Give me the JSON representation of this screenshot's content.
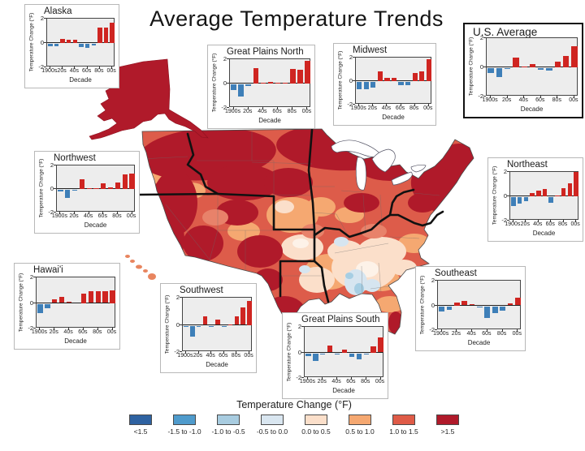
{
  "title": "Average Temperature Trends",
  "axes": {
    "ylabel": "Temperature Change (°F)",
    "xlabel": "Decade",
    "yticks": [
      "2",
      "0",
      "-2"
    ],
    "xticks": [
      "1900s",
      "20s",
      "40s",
      "60s",
      "80s",
      "00s"
    ],
    "ylim": [
      -2,
      2
    ]
  },
  "colors": {
    "bar_positive": "#cf2521",
    "bar_negative": "#3e7fb8",
    "plot_bg": "#ededed",
    "map_dark_red": "#b01a2a",
    "map_red": "#dd5c4a",
    "map_orange": "#f5a871",
    "map_peach": "#fbdfca",
    "map_pale_blue": "#d6e5f0",
    "map_light_blue": "#a6cee3"
  },
  "legend": {
    "title": "Temperature Change (°F)",
    "items": [
      {
        "label": "<1.5",
        "color": "#2e62a1"
      },
      {
        "label": "-1.5 to -1.0",
        "color": "#4f9bcc"
      },
      {
        "label": "-1.0 to -0.5",
        "color": "#a8cce0"
      },
      {
        "label": "-0.5 to 0.0",
        "color": "#d9e6f0"
      },
      {
        "label": "0.0 to 0.5",
        "color": "#fbdfca"
      },
      {
        "label": "0.5 to 1.0",
        "color": "#f5a871"
      },
      {
        "label": "1.0 to 1.5",
        "color": "#df5b47"
      },
      {
        "label": ">1.5",
        "color": "#b01a2a"
      }
    ]
  },
  "chart_data": {
    "type": "bar",
    "title": "Average Temperature Trends",
    "xlabel": "Decade",
    "ylabel": "Temperature Change (°F)",
    "ylim": [
      -2,
      2
    ],
    "grid": false,
    "categories": [
      "1900s",
      "1910s",
      "1920s",
      "1930s",
      "1940s",
      "1950s",
      "1960s",
      "1970s",
      "1980s",
      "1990s",
      "2000s"
    ],
    "series": [
      {
        "name": "Alaska",
        "values": [
          -0.2,
          -0.2,
          0.35,
          0.3,
          0.25,
          -0.25,
          -0.35,
          -0.15,
          1.3,
          1.3,
          1.7
        ]
      },
      {
        "name": "Northwest",
        "values": [
          -0.15,
          -0.7,
          -0.1,
          0.8,
          0.05,
          0.1,
          0.5,
          0.15,
          0.55,
          1.25,
          1.3
        ]
      },
      {
        "name": "Great Plains North",
        "values": [
          -0.45,
          -1.0,
          -0.1,
          1.3,
          0.05,
          0.15,
          0.1,
          0.1,
          1.2,
          1.15,
          1.85
        ]
      },
      {
        "name": "Midwest",
        "values": [
          -0.6,
          -0.6,
          -0.5,
          0.8,
          0.25,
          0.3,
          -0.3,
          -0.25,
          0.7,
          0.8,
          1.85
        ]
      },
      {
        "name": "U.S. Average",
        "values": [
          -0.35,
          -0.6,
          -0.05,
          0.65,
          0.05,
          0.2,
          -0.1,
          -0.15,
          0.4,
          0.8,
          1.45
        ]
      },
      {
        "name": "Northeast",
        "values": [
          -0.75,
          -0.5,
          -0.3,
          0.3,
          0.5,
          0.6,
          -0.45,
          0.05,
          0.65,
          1.1,
          2.0
        ]
      },
      {
        "name": "Hawai'i",
        "values": [
          -0.7,
          -0.35,
          0.3,
          0.45,
          0.1,
          0.0,
          0.75,
          0.9,
          0.9,
          0.95,
          1.0
        ]
      },
      {
        "name": "Southwest",
        "values": [
          -0.1,
          -0.8,
          -0.05,
          0.6,
          -0.1,
          0.4,
          -0.05,
          0.05,
          0.65,
          1.3,
          1.75
        ]
      },
      {
        "name": "Great Plains South",
        "values": [
          -0.25,
          -0.6,
          -0.1,
          0.55,
          -0.05,
          0.25,
          -0.3,
          -0.45,
          -0.1,
          0.5,
          1.2
        ]
      },
      {
        "name": "Southeast",
        "values": [
          -0.45,
          -0.3,
          0.25,
          0.35,
          0.1,
          -0.05,
          -0.95,
          -0.55,
          -0.35,
          0.15,
          0.65
        ]
      }
    ]
  }
}
